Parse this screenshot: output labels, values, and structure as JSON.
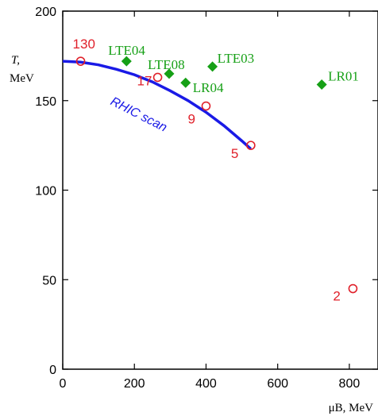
{
  "chart_data": {
    "type": "scatter",
    "title": "",
    "xlabel": "μB, MeV",
    "ylabel_symbol": "T,",
    "ylabel_unit": "MeV",
    "xlim": [
      0,
      880
    ],
    "ylim": [
      0,
      200
    ],
    "xticks": [
      0,
      200,
      400,
      600,
      800
    ],
    "yticks": [
      0,
      50,
      100,
      150,
      200
    ],
    "grid": false,
    "colors": {
      "rhic": "#e0202a",
      "lte": "#16a016",
      "curve": "#1a1ae6"
    },
    "series": [
      {
        "name": "",
        "marker": "open-circle",
        "points": [
          {
            "x": 50,
            "y": 172,
            "label": "130"
          },
          {
            "x": 265,
            "y": 163,
            "label": "17"
          },
          {
            "x": 400,
            "y": 147,
            "label": "9"
          },
          {
            "x": 525,
            "y": 125,
            "label": "5"
          },
          {
            "x": 810,
            "y": 45,
            "label": "2"
          }
        ]
      },
      {
        "name": "",
        "marker": "filled-diamond",
        "points": [
          {
            "x": 178,
            "y": 172,
            "label": "LTE04"
          },
          {
            "x": 297,
            "y": 165,
            "label": "LTE08"
          },
          {
            "x": 343,
            "y": 160,
            "label": "LR04"
          },
          {
            "x": 418,
            "y": 169,
            "label": "LTE03"
          },
          {
            "x": 723,
            "y": 159,
            "label": "LR01"
          }
        ]
      }
    ],
    "curve": {
      "label": "RHIC scan",
      "x": [
        0,
        50,
        100,
        150,
        200,
        250,
        300,
        350,
        400,
        450,
        500,
        525
      ],
      "y": [
        172,
        171.5,
        170,
        167.5,
        164.5,
        160.5,
        155.5,
        150,
        143.5,
        136,
        127.5,
        123
      ]
    }
  }
}
